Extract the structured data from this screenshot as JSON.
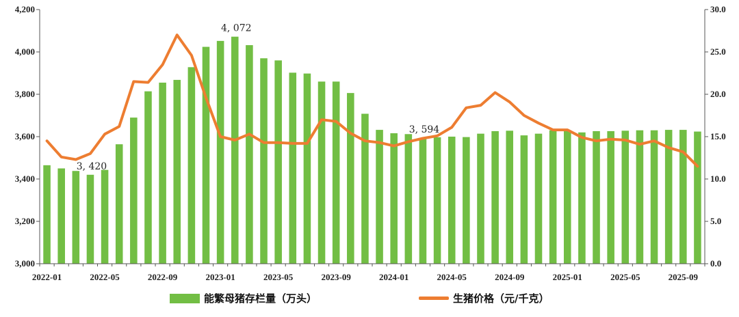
{
  "chart_data": {
    "type": "bar+line",
    "title": "",
    "categories": [
      "2022-01",
      "2022-02",
      "2022-03",
      "2022-04",
      "2022-05",
      "2022-06",
      "2022-07",
      "2022-08",
      "2022-09",
      "2022-10",
      "2022-11",
      "2022-12",
      "2023-01",
      "2023-02",
      "2023-03",
      "2023-04",
      "2023-05",
      "2023-06",
      "2023-07",
      "2023-08",
      "2023-09",
      "2023-10",
      "2023-11",
      "2023-12",
      "2024-01",
      "2024-02",
      "2024-03",
      "2024-04",
      "2024-05",
      "2024-06",
      "2024-07",
      "2024-08",
      "2024-09",
      "2024-10",
      "2024-11",
      "2024-12",
      "2025-01",
      "2025-02",
      "2025-03",
      "2025-04",
      "2025-05",
      "2025-06",
      "2025-07",
      "2025-08",
      "2025-09",
      "2025-10"
    ],
    "x_tick_labels": [
      "2022-01",
      "2022-05",
      "2022-09",
      "2023-01",
      "2023-05",
      "2023-09",
      "2024-01",
      "2024-05",
      "2024-09",
      "2025-01",
      "2025-05",
      "2025-09"
    ],
    "series": [
      {
        "name": "能繁母猪存栏量（万头）",
        "type": "bar",
        "axis": "left",
        "color": "#72BE44",
        "values": [
          3465,
          3450,
          3438,
          3420,
          3443,
          3564,
          3690,
          3814,
          3855,
          3868,
          3928,
          4024,
          4052,
          4072,
          4032,
          3970,
          3960,
          3902,
          3898,
          3860,
          3860,
          3806,
          3708,
          3632,
          3616,
          3612,
          3594,
          3597,
          3600,
          3598,
          3614,
          3626,
          3628,
          3606,
          3614,
          3630,
          3628,
          3620,
          3626,
          3626,
          3628,
          3630,
          3630,
          3632,
          3632,
          3624
        ]
      },
      {
        "name": "生猪价格（元/千克）",
        "type": "line",
        "axis": "right",
        "color": "#ED7D31",
        "values": [
          14.5,
          12.6,
          12.3,
          13.0,
          15.3,
          16.2,
          21.5,
          21.4,
          23.5,
          27.0,
          24.6,
          19.6,
          15.0,
          14.6,
          15.3,
          14.3,
          14.3,
          14.2,
          14.2,
          17.0,
          16.8,
          15.4,
          14.5,
          14.3,
          13.9,
          14.4,
          14.8,
          15.1,
          16.1,
          18.4,
          18.7,
          20.2,
          19.1,
          17.5,
          16.6,
          15.8,
          15.8,
          14.9,
          14.5,
          14.7,
          14.6,
          14.1,
          14.5,
          13.7,
          13.2,
          11.5
        ]
      }
    ],
    "annotations": [
      {
        "index": 3,
        "text": "3, 420"
      },
      {
        "index": 13,
        "text": "4, 072"
      },
      {
        "index": 26,
        "text": "3, 594"
      }
    ],
    "y_left": {
      "min": 3000,
      "max": 4200,
      "step": 200,
      "tick_labels": [
        "3,000",
        "3,200",
        "3,400",
        "3,600",
        "3,800",
        "4,000",
        "4,200"
      ]
    },
    "y_right": {
      "min": 0,
      "max": 30,
      "step": 5,
      "tick_labels": [
        "0.0",
        "5.0",
        "10.0",
        "15.0",
        "20.0",
        "25.0",
        "30.0"
      ]
    },
    "grid": false,
    "legend_position": "bottom"
  }
}
